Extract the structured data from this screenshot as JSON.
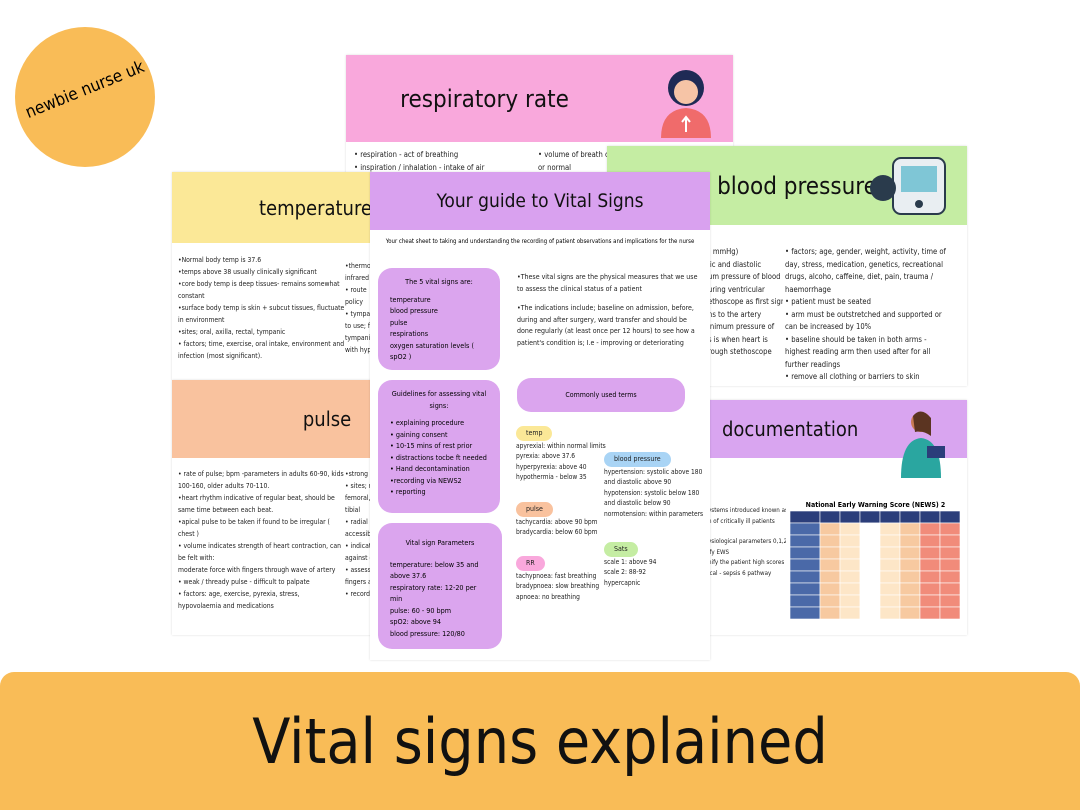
{
  "badge": "newbie nurse uk",
  "banner": "Vital signs explained",
  "respiratory_rate": {
    "title": "respiratory rate",
    "lines": [
      "• respiration - act of breathing",
      "• inspiration / inhalation - intake of air"
    ],
    "lines_right": [
      "• volume of breath ca",
      "or normal"
    ]
  },
  "blood_pressure": {
    "title": "blood pressure",
    "lines": [
      "( mmHg)",
      "lic and diastolic",
      "um pressure of blood",
      "uring ventricular",
      "ethoscope as first sign",
      "ns to the artery",
      "inimum pressure of",
      "s is when heart is",
      "rough stethoscope"
    ],
    "lines_right": [
      "• factors; age, gender, weight, activity, time of day, stress, medication, genetics, recreational drugs, alcoho, caffeine, diet, pain, trauma / haemorrhage",
      "• patient must be seated",
      "• arm must be outstretched and supported or can be increased by 10%",
      "• baseline should be taken in both arms - highest reading arm then used after for all further readings",
      "• remove all clothing or barriers to skin"
    ]
  },
  "temperature": {
    "title": "temperature",
    "lines": [
      "•Normal body temp is 37.6",
      "•temps above 38 usually clinically significant",
      "•core body temp is deep tissues- remains somewhat constant",
      "•surface body temp is skin + subcut tissues, fluctuate in environment",
      "•sites; oral, axilla, rectal, tympanic",
      "• factors; time, exercise, oral intake, environment and infection (most significant)."
    ],
    "lines_right": [
      "•thermom",
      "infrared",
      "• route",
      "policy",
      "• tympan",
      "to use; fl",
      "tympanic",
      "with hyp"
    ]
  },
  "pulse": {
    "title": "pulse",
    "lines": [
      "• rate of pulse; bpm -parameters in adults 60-90, kids 100-160, older adults 70-110.",
      "•heart rhythm indicative of regular beat, should be same time between each beat.",
      "•apical pulse to be taken if found to be irregular ( chest )",
      "• volume indicates strength of heart contraction, can be felt with:",
      "moderate force with fingers through wave of artery",
      "• weak / thready pulse - difficult to palpate",
      "• factors: age, exercise, pyrexia, stress, hypovolaemia and medications"
    ],
    "lines_right": [
      "•strong p",
      "• sites; r",
      "femoral,",
      "tibial",
      "• radial",
      "accessibl",
      "• indicat",
      "against c",
      "• assess",
      "fingers a",
      "• record"
    ]
  },
  "documentation": {
    "title": "documentation",
    "lines": [
      "ystems introduced known as",
      "n of critically ill patients",
      "",
      "ysiological parameters 0,1,2",
      "ify EWS",
      "nify the patient high scores",
      "ical - sepsis 6 pathway"
    ],
    "news_title": "National Early Warning Score (NEWS) 2"
  },
  "guide": {
    "title": "Your guide to Vital Signs",
    "subtitle": "Your cheat sheet to taking and understanding the recording of patient observations and implications for the nurse",
    "box1": {
      "heading": "The 5 vital signs are:",
      "lines": [
        "temperature",
        "blood pressure",
        "pulse",
        "respirations",
        "oxygen saturation levels ( spO2 )"
      ]
    },
    "box2": {
      "heading": "Guidelines for assessing vital signs:",
      "lines": [
        "• explaining procedure",
        "• gaining consent",
        "• 10-15 mins of rest prior",
        "• distractions tocbe ft needed",
        "• Hand decontamination",
        "•recording via NEWS2",
        "• reporting"
      ]
    },
    "box3": {
      "heading": "Vital sign Parameters",
      "lines": [
        "temperature: below 35 and above 37.6",
        "respiratory rate: 12-20 per min",
        "pulse: 60 - 90 bpm",
        "spO2: above 94",
        "blood pressure: 120/80"
      ]
    },
    "intro": [
      "•These vital signs are the physical measures that we use to assess the clinical status of a patient",
      "•The indications include; baseline on admission, before, during and after surgery, ward transfer and should be done regularly (at least once per 12 hours) to see how a patient's condition is; I.e - improving or deteriorating"
    ],
    "terms_heading": "Commonly used terms",
    "temp": {
      "tag": "temp",
      "lines": [
        "apyrexial: within normal limits",
        "pyrexia: above 37.6",
        "hyperpyrexia: above 40",
        "hypothermia - below 35"
      ]
    },
    "pulse": {
      "tag": "pulse",
      "lines": [
        "tachycardia: above 90 bpm",
        "bradycardia: below 60 bpm"
      ]
    },
    "rr": {
      "tag": "RR",
      "lines": [
        "tachypnoea: fast breathing",
        "bradypnoea: slow breathing",
        "apnoea: no breathing"
      ]
    },
    "bp": {
      "tag": "blood pressure",
      "lines": [
        "hypertension: systolic above 180",
        "and diastolic above 90",
        "hypotension: systolic below 180",
        "and diastolic below 90",
        "normotension: within parameters"
      ]
    },
    "sats": {
      "tag": "Sats",
      "lines": [
        "scale 1: above 94",
        "scale 2: 88-92",
        "hypercapnic"
      ]
    }
  }
}
